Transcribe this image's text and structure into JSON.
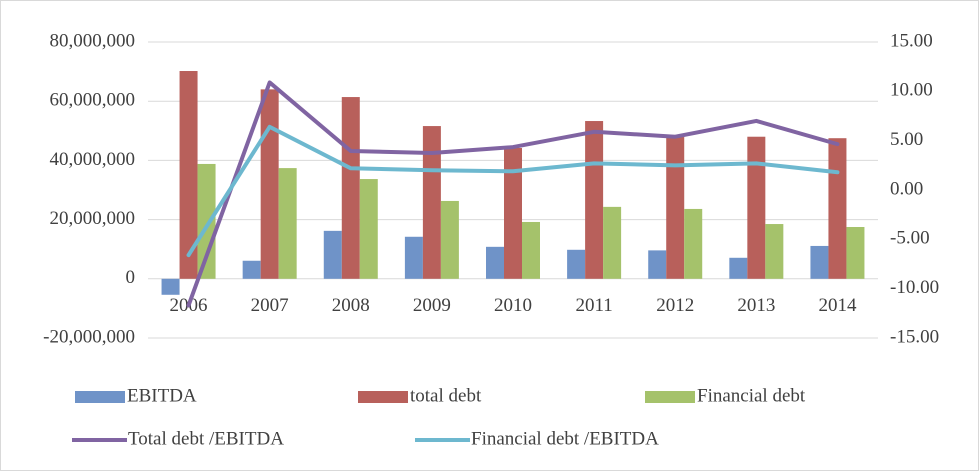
{
  "chart_data": {
    "type": "bar",
    "categories": [
      "2006",
      "2007",
      "2008",
      "2009",
      "2010",
      "2011",
      "2012",
      "2013",
      "2014"
    ],
    "series": [
      {
        "name": "EBITDA",
        "type": "bar",
        "color": "#6f93c8",
        "values": [
          -5400000,
          6100000,
          16200000,
          14200000,
          10800000,
          9800000,
          9600000,
          7100000,
          11100000
        ]
      },
      {
        "name": "total debt",
        "type": "bar",
        "color": "#b8605b",
        "values": [
          70200000,
          64000000,
          61400000,
          51600000,
          44200000,
          53300000,
          48600000,
          48000000,
          47500000
        ]
      },
      {
        "name": "Financial debt",
        "type": "bar",
        "color": "#a5c26b",
        "values": [
          38800000,
          37400000,
          33700000,
          26300000,
          19200000,
          24300000,
          23600000,
          18500000,
          17500000
        ]
      },
      {
        "name": "Total debt /EBITDA",
        "type": "line",
        "axis": "y2",
        "color": "#8064a2",
        "values": [
          -11.7,
          10.9,
          3.95,
          3.75,
          4.35,
          5.9,
          5.4,
          7.0,
          4.65
        ]
      },
      {
        "name": "Financial debt /EBITDA",
        "type": "line",
        "axis": "y2",
        "color": "#6db8cf",
        "values": [
          -6.6,
          6.4,
          2.2,
          2.0,
          1.9,
          2.7,
          2.5,
          2.7,
          1.8
        ]
      }
    ],
    "ylim": [
      -20000000,
      80000000
    ],
    "yticks": [
      {
        "value": -20000000,
        "label": "-20,000,000"
      },
      0,
      {
        "value": 20000000,
        "label": "20,000,000"
      },
      {
        "value": 40000000,
        "label": "40,000,000"
      },
      {
        "value": 60000000,
        "label": "60,000,000"
      },
      {
        "value": 80000000,
        "label": "80,000,000"
      }
    ],
    "y2lim": [
      -15,
      15
    ],
    "y2ticks": [
      {
        "value": -15,
        "label": "-15.00"
      },
      {
        "value": -10,
        "label": "-10.00"
      },
      {
        "value": -5,
        "label": "-5.00"
      },
      {
        "value": 0,
        "label": "0.00"
      },
      {
        "value": 5,
        "label": "5.00"
      },
      {
        "value": 10,
        "label": "10.00"
      },
      {
        "value": 15,
        "label": "15.00"
      }
    ],
    "grid": true,
    "legend": "bottom"
  }
}
